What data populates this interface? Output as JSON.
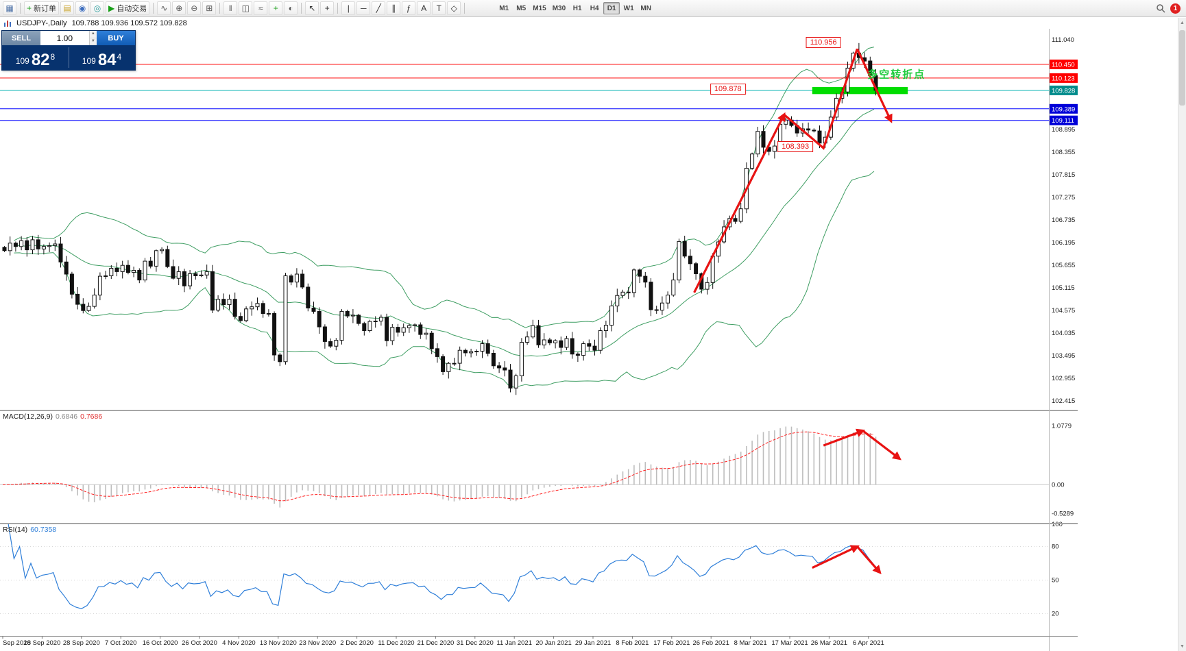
{
  "app": {
    "toolbar": {
      "tools": [
        {
          "button": "charts-button",
          "icon": "charts-grid-icon",
          "glyph": "▦",
          "color": "#4a6fa5"
        },
        {
          "sep": true
        },
        {
          "button": "new-order-button",
          "icon": "new-order-plus-icon",
          "glyph": "+",
          "color": "#18a018",
          "label": "新订单"
        },
        {
          "button": "templates-button",
          "icon": "templates-icon",
          "glyph": "▤",
          "color": "#c8a227"
        },
        {
          "button": "profiles-button",
          "icon": "profiles-icon",
          "glyph": "◉",
          "color": "#3f6fbf"
        },
        {
          "button": "data-window-button",
          "icon": "data-window-icon",
          "glyph": "◎",
          "color": "#2e9e9e"
        },
        {
          "button": "autotrading-button",
          "icon": "play-icon",
          "glyph": "▶",
          "color": "#18a018",
          "label": "自动交易"
        },
        {
          "sep": true
        },
        {
          "button": "indicators-button",
          "icon": "indicator-wave-icon",
          "glyph": "∿",
          "color": "#555555"
        },
        {
          "button": "zoom-in-button",
          "icon": "zoom-in-icon",
          "glyph": "⊕",
          "color": "#555555"
        },
        {
          "button": "zoom-out-button",
          "icon": "zoom-out-icon",
          "glyph": "⊖",
          "color": "#555555"
        },
        {
          "button": "tile-windows-button",
          "icon": "tile-windows-icon",
          "glyph": "⊞",
          "color": "#555555"
        },
        {
          "sep": true
        },
        {
          "button": "bar-chart-button",
          "icon": "bars-chart-icon",
          "glyph": "‖",
          "color": "#555555"
        },
        {
          "button": "candle-chart-button",
          "icon": "candles-chart-icon",
          "glyph": "◫",
          "color": "#555555"
        },
        {
          "button": "line-chart-button",
          "icon": "line-chart-icon",
          "glyph": "≈",
          "color": "#555555"
        },
        {
          "button": "new-chart-button",
          "icon": "new-chart-plus-icon",
          "glyph": "+",
          "color": "#18a018"
        },
        {
          "button": "refresh-button",
          "icon": "refresh-icon",
          "glyph": "◐",
          "color": "#555555"
        },
        {
          "sep": true
        },
        {
          "button": "cursor-button",
          "icon": "cursor-arrow-icon",
          "glyph": "↖",
          "color": "#333333"
        },
        {
          "button": "crosshair-button",
          "icon": "crosshair-icon",
          "glyph": "+",
          "color": "#333333"
        },
        {
          "sep": true
        },
        {
          "button": "vertical-line-button",
          "icon": "vertical-line-icon",
          "glyph": "|",
          "color": "#333333"
        },
        {
          "button": "horizontal-line-button",
          "icon": "horizontal-line-icon",
          "glyph": "─",
          "color": "#333333"
        },
        {
          "button": "trendline-button",
          "icon": "trendline-icon",
          "glyph": "╱",
          "color": "#333333"
        },
        {
          "button": "channel-button",
          "icon": "channel-icon",
          "glyph": "∥",
          "color": "#333333"
        },
        {
          "button": "fibonacci-button",
          "icon": "fibonacci-icon",
          "glyph": "ƒ",
          "color": "#333333"
        },
        {
          "button": "text-button",
          "icon": "text-icon",
          "glyph": "A",
          "color": "#333333"
        },
        {
          "button": "label-button",
          "icon": "text-label-icon",
          "glyph": "T",
          "color": "#333333"
        },
        {
          "button": "shapes-button",
          "icon": "shapes-icon",
          "glyph": "◇",
          "color": "#333333"
        },
        {
          "sep": true
        }
      ],
      "timeframes": [
        "M1",
        "M5",
        "M15",
        "M30",
        "H1",
        "H4",
        "D1",
        "W1",
        "MN"
      ],
      "active_timeframe": "D1",
      "notification_badge": "1"
    },
    "chart_title": {
      "symbol_period": "USDJPY-,Daily",
      "ohlc": "109.788 109.936 109.572 109.828"
    },
    "trade_panel": {
      "sell_label": "SELL",
      "buy_label": "BUY",
      "volume": "1.00",
      "stepper_up": "▲",
      "stepper_down": "▼",
      "sell_price_base": "109",
      "sell_price_big": "82",
      "sell_price_sup": "8",
      "buy_price_base": "109",
      "buy_price_big": "84",
      "buy_price_sup": "4"
    },
    "scrollbar": {
      "up_glyph": "▲",
      "down_glyph": "▼"
    }
  },
  "chart_data": {
    "type": "candlestick",
    "symbol": "USDJPY-",
    "period": "Daily",
    "label_step": 7,
    "x_labels": [
      "Sep 2020",
      "18 Sep 2020",
      "28 Sep 2020",
      "7 Oct 2020",
      "16 Oct 2020",
      "26 Oct 2020",
      "4 Nov 2020",
      "13 Nov 2020",
      "23 Nov 2020",
      "2 Dec 2020",
      "11 Dec 2020",
      "21 Dec 2020",
      "31 Dec 2020",
      "11 Jan 2021",
      "20 Jan 2021",
      "29 Jan 2021",
      "8 Feb 2021",
      "17 Feb 2021",
      "26 Feb 2021",
      "8 Mar 2021",
      "17 Mar 2021",
      "26 Mar 2021",
      "6 Apr 2021"
    ],
    "closes": [
      106.0,
      106.18,
      106.1,
      106.24,
      106.02,
      106.26,
      106.04,
      106.1,
      106.12,
      106.16,
      105.73,
      105.44,
      104.96,
      104.72,
      104.57,
      104.67,
      104.94,
      105.39,
      105.4,
      105.58,
      105.5,
      105.65,
      105.48,
      105.53,
      105.3,
      105.75,
      105.63,
      106.0,
      106.03,
      105.62,
      105.34,
      105.5,
      105.16,
      105.45,
      105.4,
      105.42,
      105.5,
      104.58,
      104.84,
      104.71,
      104.84,
      104.43,
      104.33,
      104.61,
      104.66,
      104.74,
      104.5,
      104.5,
      103.51,
      103.35,
      105.4,
      105.25,
      105.44,
      105.13,
      104.63,
      104.55,
      104.18,
      103.83,
      103.72,
      103.86,
      104.55,
      104.44,
      104.46,
      104.26,
      104.09,
      104.31,
      104.32,
      104.41,
      103.85,
      104.17,
      104.05,
      104.16,
      104.21,
      104.23,
      104.0,
      104.03,
      103.66,
      103.47,
      103.11,
      103.31,
      103.31,
      103.62,
      103.56,
      103.59,
      103.6,
      103.78,
      103.55,
      103.25,
      103.2,
      103.15,
      102.72,
      103.01,
      103.81,
      103.94,
      104.21,
      103.75,
      103.87,
      103.8,
      103.85,
      103.69,
      103.9,
      103.53,
      103.5,
      103.78,
      103.72,
      103.62,
      104.09,
      104.22,
      104.68,
      104.93,
      105.01,
      105.0,
      105.54,
      105.39,
      105.25,
      104.59,
      104.58,
      104.75,
      104.94,
      105.3,
      106.22,
      105.87,
      105.69,
      105.45,
      105.08,
      105.24,
      105.87,
      106.21,
      106.57,
      106.77,
      106.7,
      107.0,
      107.97,
      108.31,
      108.85,
      108.47,
      108.37,
      108.5,
      109.02,
      109.12,
      108.99,
      108.81,
      108.91,
      108.88,
      108.86,
      108.57,
      108.71,
      109.19,
      109.64,
      109.79,
      110.36,
      110.72,
      110.61,
      110.53,
      110.18,
      109.83
    ],
    "peak": {
      "index": 152,
      "high": 110.96
    },
    "bollinger": {
      "period": 20,
      "deviation": 2,
      "color": "#3f9e63"
    },
    "candle_up_color": "#ffffff",
    "candle_down_color": "#111111",
    "main_y_ticks": [
      "111.040",
      "108.895",
      "108.355",
      "107.815",
      "107.275",
      "106.735",
      "106.195",
      "105.655",
      "105.115",
      "104.575",
      "104.035",
      "103.495",
      "102.955",
      "102.415"
    ],
    "price_lines": [
      {
        "price": 110.45,
        "label": "110.450",
        "color": "#ff0000",
        "tag_bg": "#ff0000"
      },
      {
        "price": 110.123,
        "label": "110.123",
        "color": "#ff0000",
        "tag_bg": "#ff0000"
      },
      {
        "price": 109.828,
        "label": "109.828",
        "color": "#00b0b0",
        "tag_bg": "#008b8b"
      },
      {
        "price": 109.389,
        "label": "109.389",
        "color": "#0000ff",
        "tag_bg": "#0000d8"
      },
      {
        "price": 109.111,
        "label": "109.111",
        "color": "#0000ff",
        "tag_bg": "#0000d8"
      }
    ],
    "highlight_bar": {
      "index_from": 144,
      "index_to": 161,
      "price_top": 109.91,
      "price_bottom": 109.74,
      "color": "#00dd00"
    },
    "callouts": [
      {
        "text": "110.956",
        "index": 146,
        "price": 110.97
      },
      {
        "text": "109.878",
        "index": 129,
        "price": 109.86
      },
      {
        "text": "108.393",
        "index": 141,
        "price": 108.48
      }
    ],
    "turning_point": {
      "text": "多空转折点",
      "index": 159,
      "price": 110.22,
      "color": "#1ecb3c"
    },
    "macd": {
      "name": "MACD(12,26,9)",
      "value_main": "0.6846",
      "value_signal": "0.7686",
      "fast": 12,
      "slow": 26,
      "signal": 9,
      "histogram_color": "#bdbdbd",
      "signal_color": "#ff2020",
      "y_ticks": [
        {
          "label": "1.0779",
          "value": 1.0779
        },
        {
          "label": "0.00",
          "value": 0
        },
        {
          "label": "-0.5289",
          "value": -0.5289
        }
      ]
    },
    "rsi": {
      "name": "RSI(14)",
      "value": "60.7358",
      "period": 14,
      "color": "#2f7fd9",
      "y_ticks": [
        {
          "label": "100",
          "value": 100
        },
        {
          "label": "80",
          "value": 80
        },
        {
          "label": "50",
          "value": 50
        },
        {
          "label": "20",
          "value": 20
        }
      ]
    }
  },
  "annotations": {
    "color": "#e81313",
    "trend_arrows_main": [
      {
        "points": [
          [
            123,
            105.0
          ],
          [
            139,
            109.25
          ]
        ],
        "head": true
      },
      {
        "points": [
          [
            139,
            109.25
          ],
          [
            146,
            108.45
          ],
          [
            152,
            110.82
          ]
        ],
        "head": false
      },
      {
        "points": [
          [
            152,
            110.82
          ],
          [
            158,
            109.1
          ]
        ],
        "head": true
      }
    ],
    "trend_arrows_macd": [
      {
        "points": [
          [
            146,
            0.72
          ],
          [
            153,
            0.99
          ]
        ],
        "head": true
      },
      {
        "points": [
          [
            153,
            0.99
          ],
          [
            159.5,
            0.48
          ]
        ],
        "head": true
      }
    ],
    "trend_arrows_rsi": [
      {
        "points": [
          [
            144,
            61
          ],
          [
            152,
            80
          ]
        ],
        "head": true
      },
      {
        "points": [
          [
            152,
            80
          ],
          [
            156,
            57
          ]
        ],
        "head": true
      }
    ]
  }
}
